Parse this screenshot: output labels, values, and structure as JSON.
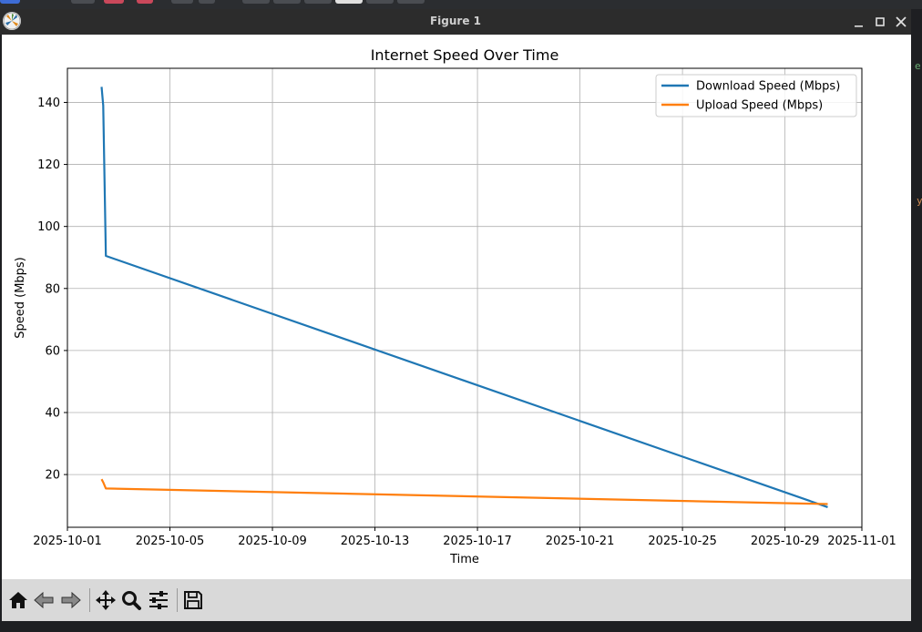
{
  "window": {
    "title": "Figure 1",
    "minimize_icon": "minimize-icon",
    "maximize_icon": "maximize-icon",
    "close_icon": "close-icon"
  },
  "toolbar": {
    "buttons": [
      {
        "name": "home-button",
        "icon": "home-icon"
      },
      {
        "name": "back-button",
        "icon": "arrow-left-icon"
      },
      {
        "name": "forward-button",
        "icon": "arrow-right-icon"
      },
      {
        "name": "pan-button",
        "icon": "move-icon"
      },
      {
        "name": "zoom-button",
        "icon": "magnifier-icon"
      },
      {
        "name": "configure-subplots-button",
        "icon": "sliders-icon"
      },
      {
        "name": "save-button",
        "icon": "floppy-disk-icon"
      }
    ]
  },
  "chart_data": {
    "type": "line",
    "title": "Internet Speed Over Time",
    "xlabel": "Time",
    "ylabel": "Speed (Mbps)",
    "xlim": [
      "2025-10-01",
      "2025-11-01"
    ],
    "ylim": [
      3,
      151
    ],
    "x_ticks": [
      "2025-10-01",
      "2025-10-05",
      "2025-10-09",
      "2025-10-13",
      "2025-10-17",
      "2025-10-21",
      "2025-10-25",
      "2025-10-29",
      "2025-11-01"
    ],
    "y_ticks": [
      20,
      40,
      60,
      80,
      100,
      120,
      140
    ],
    "y_tick_labels": [
      "20",
      "40",
      "60",
      "80",
      "100",
      "120",
      "140"
    ],
    "grid": true,
    "legend": "upper right",
    "series": [
      {
        "name": "Download Speed (Mbps)",
        "color": "#1f77b4",
        "x": [
          "2025-10-02 08:00",
          "2025-10-02 09:30",
          "2025-10-02 12:00",
          "2025-10-30 16:00"
        ],
        "y": [
          145,
          139,
          90.5,
          9.5
        ]
      },
      {
        "name": "Upload Speed (Mbps)",
        "color": "#ff7f0e",
        "x": [
          "2025-10-02 08:00",
          "2025-10-02 09:30",
          "2025-10-02 12:00",
          "2025-10-30 16:00"
        ],
        "y": [
          18.5,
          17.5,
          15.5,
          10.5
        ]
      }
    ]
  }
}
